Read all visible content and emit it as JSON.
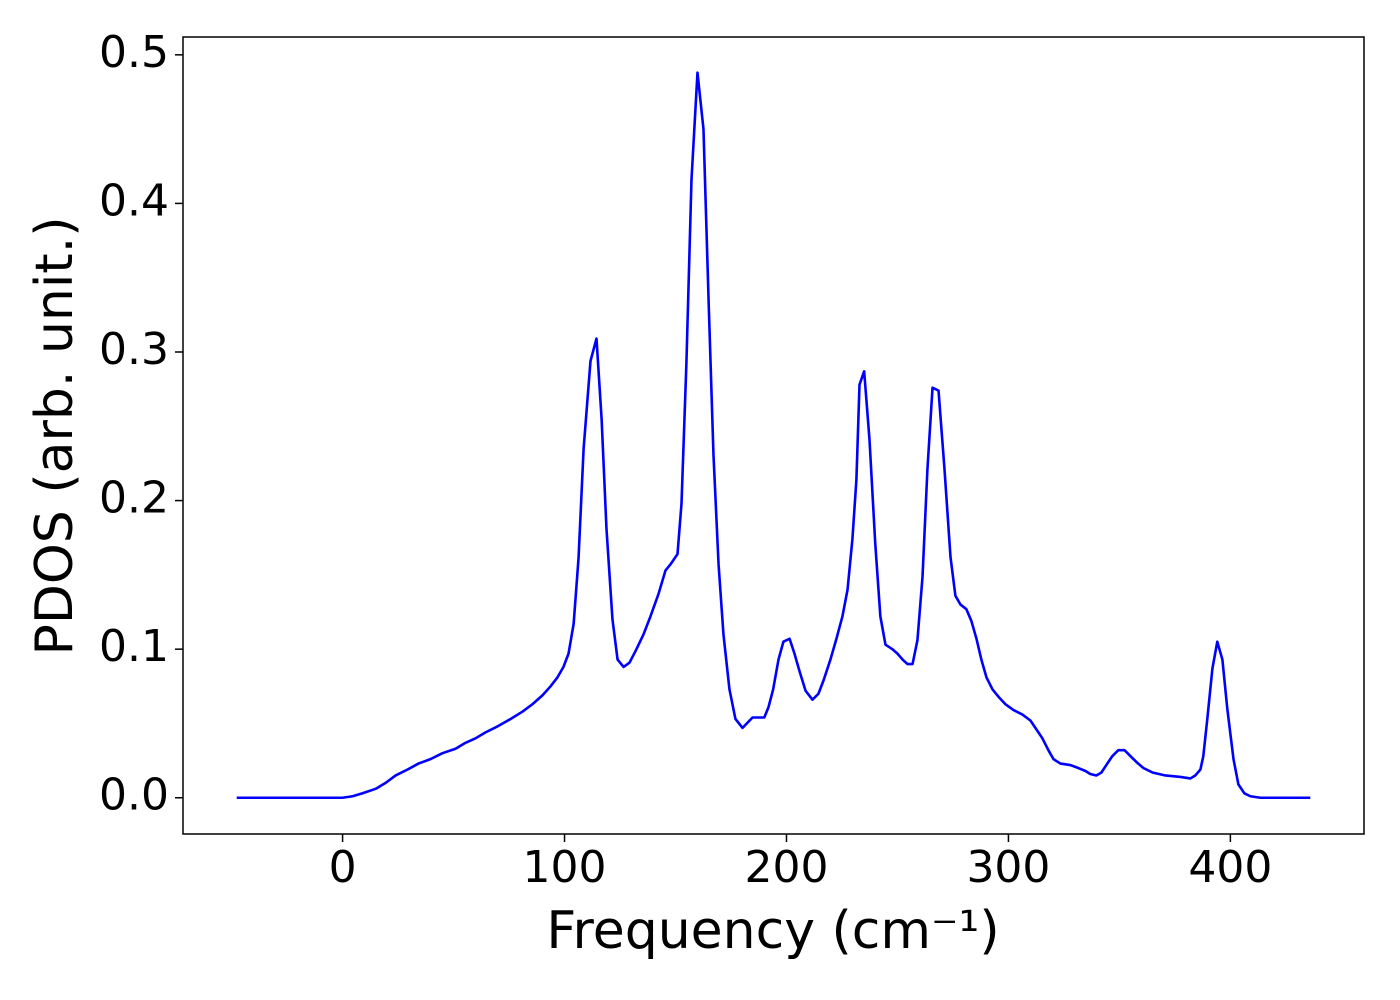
{
  "chart_data": {
    "type": "line",
    "xlabel": "Frequency (cm⁻¹)",
    "ylabel": "PDOS (arb. unit.)",
    "xlim": [
      -71.9,
      460.2
    ],
    "ylim": [
      -0.0244,
      0.512
    ],
    "xticks": [
      0,
      100,
      200,
      300,
      400
    ],
    "yticks": [
      {
        "value": 0,
        "label": "0.0"
      },
      0.1,
      0.2,
      0.3,
      0.4,
      0.5
    ],
    "series": [
      {
        "color": "#0000ff",
        "x": [
          -47.7,
          -10,
          0,
          4.5,
          9,
          14.9,
          19.4,
          23.9,
          29.3,
          34.2,
          39.6,
          45,
          50.9,
          55.4,
          59.9,
          64.4,
          69.8,
          75.7,
          81.1,
          85.6,
          90.1,
          93.7,
          96.8,
          99.5,
          101.8,
          104.1,
          106.3,
          108.6,
          111.7,
          114.4,
          116.7,
          118.9,
          121.6,
          123.9,
          126.6,
          129.3,
          132.4,
          135.6,
          138.7,
          142.3,
          145.5,
          147.7,
          150.9,
          152.7,
          154.9,
          157.2,
          159.9,
          162.6,
          164.9,
          167.1,
          169.4,
          171.6,
          174.3,
          177,
          180.2,
          184.7,
          190,
          191.9,
          194,
          196.4,
          198.6,
          201.4,
          203.6,
          205.9,
          208.6,
          211.7,
          214.4,
          216.7,
          219.8,
          222.5,
          225.2,
          227.5,
          229.7,
          231.5,
          232.9,
          235,
          237.4,
          240,
          242.3,
          244.6,
          247.7,
          250,
          252.3,
          254.5,
          256.8,
          259,
          261.3,
          263.5,
          265.8,
          268.5,
          271.2,
          273.9,
          276.1,
          278.4,
          281,
          283.3,
          285.6,
          287.8,
          290.1,
          292.8,
          295.5,
          298.6,
          302.3,
          306.3,
          309.9,
          312.6,
          315.3,
          318,
          320.3,
          323.4,
          327.9,
          331.5,
          334.7,
          336.9,
          339.6,
          341.9,
          344.1,
          346.8,
          349.5,
          352.3,
          355,
          357.7,
          360.8,
          364.9,
          370.7,
          377.5,
          382,
          384.2,
          386.5,
          387.8,
          389.6,
          391.9,
          394.1,
          396.4,
          398.6,
          401.4,
          403.6,
          406.3,
          409,
          413.5,
          436
        ],
        "values": [
          0,
          0,
          0,
          0.001,
          0.003,
          0.006,
          0.01,
          0.015,
          0.019,
          0.023,
          0.026,
          0.03,
          0.033,
          0.037,
          0.04,
          0.044,
          0.048,
          0.053,
          0.058,
          0.063,
          0.069,
          0.075,
          0.081,
          0.088,
          0.097,
          0.117,
          0.161,
          0.235,
          0.294,
          0.309,
          0.255,
          0.181,
          0.12,
          0.093,
          0.088,
          0.091,
          0.1,
          0.11,
          0.122,
          0.137,
          0.153,
          0.157,
          0.164,
          0.198,
          0.292,
          0.416,
          0.488,
          0.45,
          0.335,
          0.231,
          0.157,
          0.11,
          0.073,
          0.053,
          0.047,
          0.054,
          0.054,
          0.061,
          0.073,
          0.093,
          0.105,
          0.107,
          0.097,
          0.085,
          0.072,
          0.066,
          0.07,
          0.079,
          0.093,
          0.107,
          0.122,
          0.14,
          0.174,
          0.214,
          0.278,
          0.287,
          0.241,
          0.171,
          0.122,
          0.103,
          0.1,
          0.097,
          0.093,
          0.09,
          0.09,
          0.106,
          0.149,
          0.221,
          0.276,
          0.274,
          0.221,
          0.162,
          0.136,
          0.13,
          0.127,
          0.119,
          0.107,
          0.093,
          0.081,
          0.073,
          0.068,
          0.063,
          0.059,
          0.056,
          0.052,
          0.046,
          0.04,
          0.032,
          0.026,
          0.023,
          0.022,
          0.02,
          0.018,
          0.016,
          0.015,
          0.017,
          0.022,
          0.028,
          0.032,
          0.032,
          0.028,
          0.024,
          0.02,
          0.017,
          0.015,
          0.014,
          0.013,
          0.015,
          0.019,
          0.028,
          0.053,
          0.087,
          0.105,
          0.093,
          0.06,
          0.026,
          0.009,
          0.003,
          0.001,
          0,
          0
        ]
      }
    ]
  }
}
